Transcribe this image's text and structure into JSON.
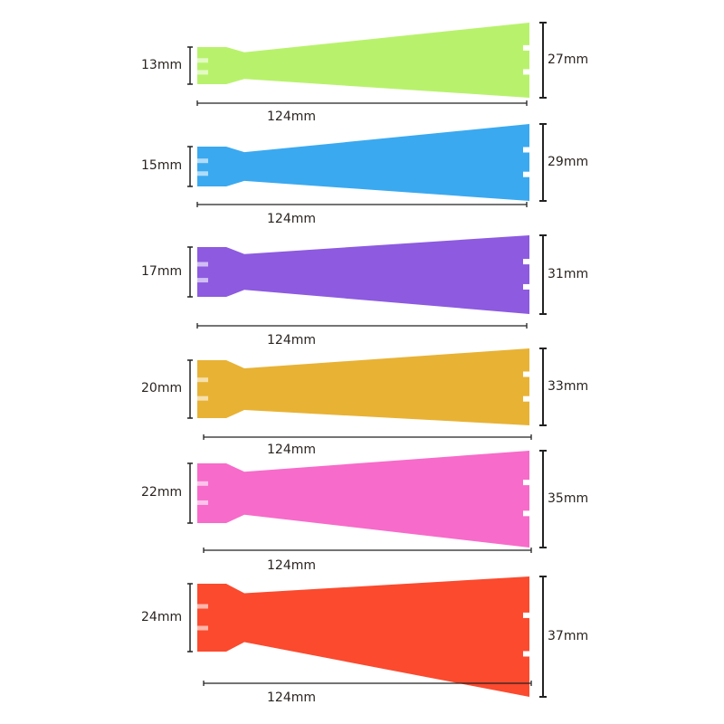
{
  "items": [
    {
      "small_diameter": "13mm",
      "large_diameter": "27mm",
      "length": "124mm",
      "color": "#b8f26c"
    },
    {
      "small_diameter": "15mm",
      "large_diameter": "29mm",
      "length": "124mm",
      "color": "#3aa9f0"
    },
    {
      "small_diameter": "17mm",
      "large_diameter": "31mm",
      "length": "124mm",
      "color": "#8d5ae0"
    },
    {
      "small_diameter": "20mm",
      "large_diameter": "33mm",
      "length": "124mm",
      "color": "#e8b234"
    },
    {
      "small_diameter": "22mm",
      "large_diameter": "35mm",
      "length": "124mm",
      "color": "#f76bca"
    },
    {
      "small_diameter": "24mm",
      "large_diameter": "37mm",
      "length": "124mm",
      "color": "#fb4a2e"
    }
  ]
}
